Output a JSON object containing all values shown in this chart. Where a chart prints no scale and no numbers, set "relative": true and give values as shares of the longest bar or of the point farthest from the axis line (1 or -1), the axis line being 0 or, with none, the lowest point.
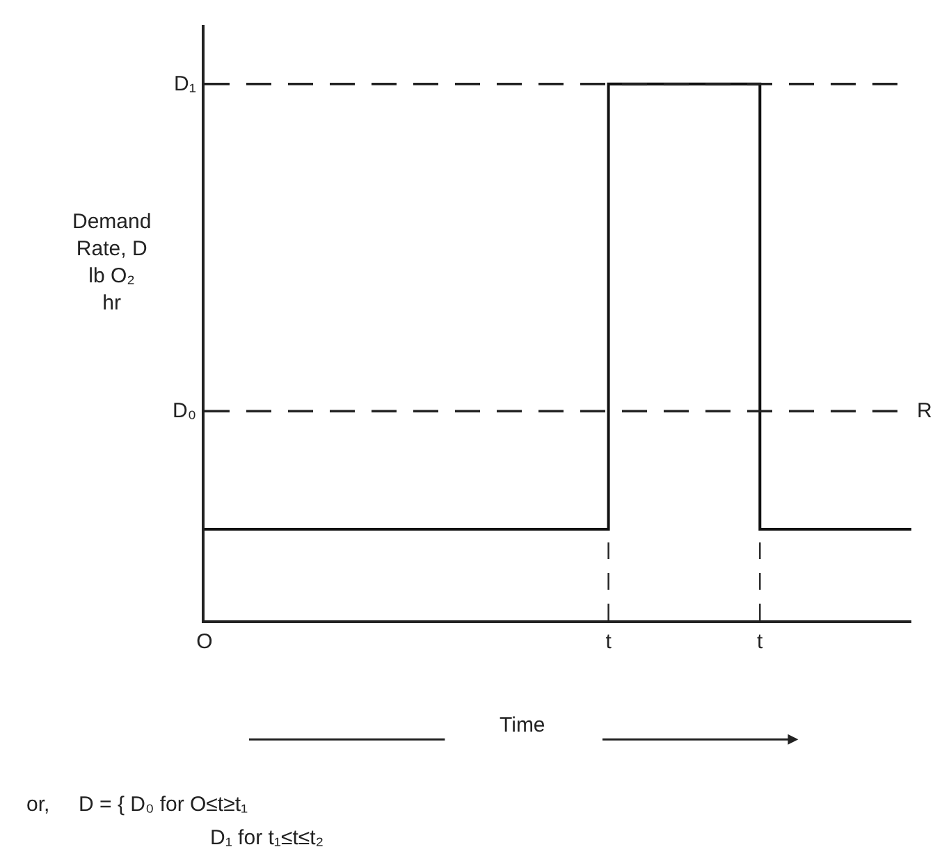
{
  "chart_data": {
    "type": "step",
    "relative": true,
    "ylabel": "Demand\nRate, D\nlb O₂\nhr",
    "xlabel": "Time",
    "categories": [
      "O",
      null,
      null,
      null,
      null,
      null,
      null,
      null,
      "t",
      null,
      null,
      "t",
      null,
      null,
      null
    ],
    "values": [
      0.17,
      0.17,
      0.17,
      0.17,
      0.17,
      0.17,
      0.17,
      0.17,
      1,
      1,
      1,
      0.17,
      0.17,
      0.17,
      0.17
    ],
    "color": "#111111",
    "ref_lines": [
      {
        "axis": "y",
        "value": 1,
        "label": "D₁",
        "line_style": "dashed"
      },
      {
        "axis": "y",
        "value": 0.39,
        "label": "D₀",
        "line_style": "dashed"
      }
    ],
    "annotations": [
      "R",
      "or,     D = { D₀ for O≤t≥t₁",
      "D₁ for t₁≤t≤t₂"
    ],
    "tick_labels": "x"
  }
}
